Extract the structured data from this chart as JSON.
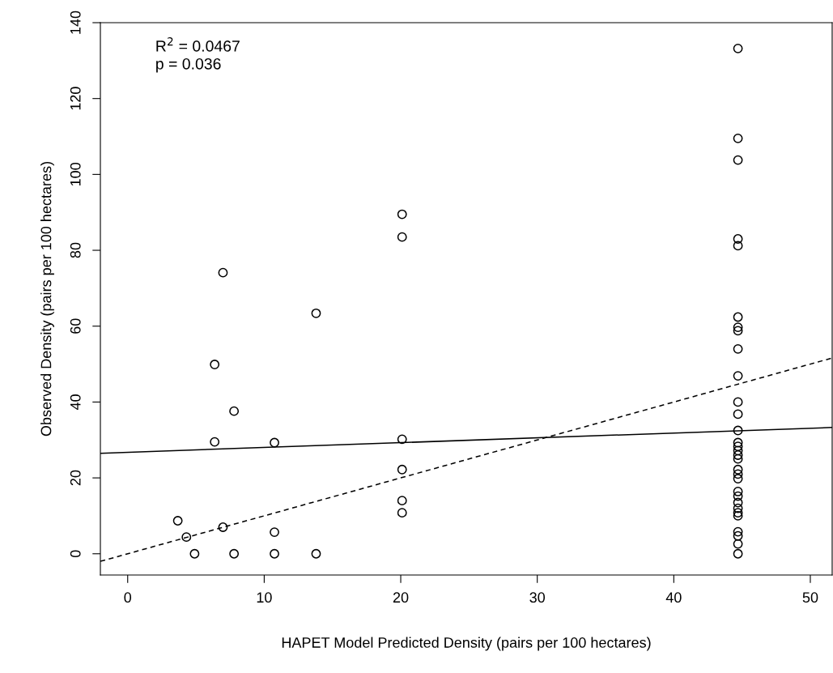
{
  "chart_data": {
    "type": "scatter",
    "xlabel": "HAPET Model Predicted Density (pairs per 100 hectares)",
    "ylabel": "Observed Density (pairs per 100 hectares)",
    "annotations": [
      "R$^{2}$ = 0.0467",
      "p = 0.036"
    ],
    "xlim": [
      -2,
      51.6
    ],
    "xticks": [
      0,
      10,
      20,
      30,
      40,
      50
    ],
    "ylim": [
      -5.6,
      140
    ],
    "yticks": [
      0,
      20,
      40,
      60,
      80,
      100,
      120,
      140
    ],
    "grid": false,
    "legend": false,
    "series": [
      {
        "marker": "circle",
        "color": "#000000",
        "x": [
          6.98,
          13.8,
          6.37,
          7.79,
          6.37,
          10.75,
          20.1,
          20.1,
          20.1,
          20.1,
          20.1,
          20.1,
          3.67,
          4.3,
          6.98,
          10.75,
          4.9,
          7.79,
          10.75,
          13.8,
          44.7,
          44.7,
          44.7,
          44.7,
          44.7,
          44.7,
          44.7,
          44.7,
          44.7,
          44.7,
          44.7,
          44.7,
          44.7,
          44.7,
          44.7,
          44.7,
          44.7,
          44.7,
          44.7,
          44.7,
          44.7,
          44.7,
          44.7,
          44.7,
          44.7,
          44.7,
          44.7,
          44.7,
          44.7,
          44.7,
          44.7
        ],
        "values": [
          74.1,
          63.4,
          49.9,
          37.6,
          29.5,
          29.3,
          89.5,
          83.5,
          30.2,
          22.2,
          14.0,
          10.8,
          8.7,
          4.4,
          7.0,
          5.7,
          0,
          0,
          0,
          0,
          0,
          133.2,
          109.5,
          103.8,
          83.0,
          81.2,
          62.4,
          59.7,
          58.8,
          54.0,
          46.9,
          40.0,
          36.8,
          32.5,
          29.3,
          28.3,
          27.2,
          26.0,
          25.0,
          22.2,
          21.0,
          19.8,
          16.4,
          15.2,
          13.5,
          12.0,
          10.8,
          10.0,
          5.8,
          4.7,
          2.6
        ]
      },
      {
        "type": "line",
        "line_style": "solid",
        "color": "#000000",
        "x": [
          -2,
          51.6
        ],
        "values": [
          26.5,
          33.3
        ]
      },
      {
        "type": "line",
        "line_style": "dashed",
        "color": "#000000",
        "x": [
          -2,
          51.6
        ],
        "values": [
          -2,
          51.6
        ]
      }
    ]
  }
}
